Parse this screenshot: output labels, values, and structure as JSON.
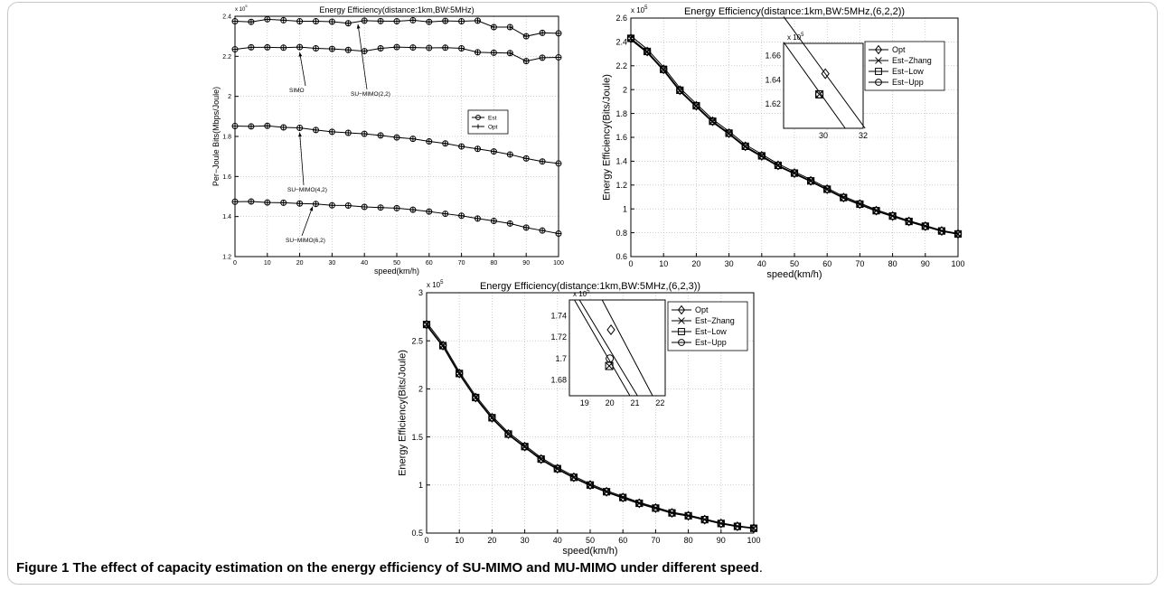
{
  "caption": {
    "label": "Figure 1",
    "text": "The effect of capacity estimation on the energy efficiency of SU-MIMO and MU-MIMO under different speed",
    "period": "."
  },
  "chart_data": [
    {
      "type": "line",
      "title": "Energy Efficiency(distance:1km,BW:5MHz)",
      "xlabel": "speed(km/h)",
      "ylabel": "Per−Joule Bits(Mbps/Joule)",
      "exponent_label": "x 10",
      "exponent_power": "5",
      "xlim": [
        0,
        100
      ],
      "ylim": [
        1.2,
        2.4
      ],
      "xticks": [
        0,
        10,
        20,
        30,
        40,
        50,
        60,
        70,
        80,
        90,
        100
      ],
      "yticks": [
        1.2,
        1.4,
        1.6,
        1.8,
        2,
        2.2,
        2.4
      ],
      "grid": true,
      "legend_position": "middle-right",
      "legend": [
        {
          "name": "Est",
          "marker": "circle"
        },
        {
          "name": "Opt",
          "marker": "plus"
        }
      ],
      "x": [
        0,
        5,
        10,
        15,
        20,
        25,
        30,
        35,
        40,
        45,
        50,
        55,
        60,
        65,
        70,
        75,
        80,
        85,
        90,
        95,
        100
      ],
      "series": [
        {
          "label": "SU−MIMO(2,2)",
          "values": [
            2.375,
            2.372,
            2.385,
            2.38,
            2.375,
            2.375,
            2.373,
            2.365,
            2.378,
            2.376,
            2.375,
            2.38,
            2.372,
            2.377,
            2.375,
            2.378,
            2.346,
            2.346,
            2.3,
            2.317,
            2.315
          ]
        },
        {
          "label": "SIMO",
          "values": [
            2.235,
            2.245,
            2.245,
            2.243,
            2.246,
            2.24,
            2.237,
            2.232,
            2.226,
            2.24,
            2.246,
            2.244,
            2.242,
            2.243,
            2.24,
            2.22,
            2.218,
            2.216,
            2.176,
            2.193,
            2.195
          ]
        },
        {
          "label": "SU−MIMO(4,2)",
          "values": [
            1.852,
            1.85,
            1.853,
            1.845,
            1.843,
            1.832,
            1.823,
            1.818,
            1.813,
            1.805,
            1.795,
            1.788,
            1.775,
            1.765,
            1.75,
            1.738,
            1.725,
            1.71,
            1.69,
            1.675,
            1.665
          ]
        },
        {
          "label": "SU−MIMO(6,2)",
          "values": [
            1.474,
            1.475,
            1.47,
            1.469,
            1.465,
            1.463,
            1.456,
            1.455,
            1.448,
            1.445,
            1.442,
            1.434,
            1.425,
            1.414,
            1.404,
            1.39,
            1.378,
            1.365,
            1.345,
            1.33,
            1.315
          ]
        }
      ],
      "annotations": [
        "SIMO",
        "SU−MIMO(2,2)",
        "SU−MIMO(4,2)",
        "SU−MIMO(6,2)"
      ]
    },
    {
      "type": "line",
      "title": "Energy Efficiency(distance:1km,BW:5MHz,(6,2,2))",
      "xlabel": "speed(km/h)",
      "ylabel": "Energy Efficiency(Bits/Joule)",
      "exponent_label": "x 10",
      "exponent_power": "5",
      "xlim": [
        0,
        100
      ],
      "ylim": [
        0.6,
        2.6
      ],
      "xticks": [
        0,
        10,
        20,
        30,
        40,
        50,
        60,
        70,
        80,
        90,
        100
      ],
      "yticks": [
        0.6,
        0.8,
        1,
        1.2,
        1.4,
        1.6,
        1.8,
        2,
        2.2,
        2.4,
        2.6
      ],
      "grid": true,
      "legend_position": "top-right",
      "legend": [
        {
          "name": "Opt",
          "marker": "diamond"
        },
        {
          "name": "Est−Zhang",
          "marker": "cross"
        },
        {
          "name": "Est−Low",
          "marker": "square"
        },
        {
          "name": "Est−Upp",
          "marker": "circle"
        }
      ],
      "x": [
        0,
        5,
        10,
        15,
        20,
        25,
        30,
        35,
        40,
        45,
        50,
        55,
        60,
        65,
        70,
        75,
        80,
        85,
        90,
        95,
        100
      ],
      "values": [
        2.43,
        2.32,
        2.17,
        1.995,
        1.865,
        1.735,
        1.635,
        1.525,
        1.445,
        1.365,
        1.3,
        1.235,
        1.165,
        1.095,
        1.04,
        0.985,
        0.94,
        0.895,
        0.855,
        0.815,
        0.79
      ],
      "inset": {
        "exponent_label": "x 10",
        "exponent_power": "5",
        "xlim": [
          28,
          32
        ],
        "ylim": [
          1.6,
          1.67
        ],
        "xticks": [
          30,
          32
        ],
        "yticks": [
          1.62,
          1.64,
          1.66
        ],
        "lines": [
          {
            "x": [
              28,
              31.1
            ],
            "y": [
              1.671,
              1.6
            ]
          },
          {
            "x": [
              28,
              32.1
            ],
            "y": [
              1.692,
              1.6
            ]
          }
        ],
        "markers": [
          {
            "x": 30.1,
            "y": 1.645,
            "marker": "diamond"
          },
          {
            "x": 29.8,
            "y": 1.628,
            "marker": "square"
          },
          {
            "x": 29.8,
            "y": 1.628,
            "marker": "circle"
          },
          {
            "x": 29.8,
            "y": 1.628,
            "marker": "cross"
          }
        ]
      }
    },
    {
      "type": "line",
      "title": "Energy Efficiency(distance:1km,BW:5MHz,(6,2,3))",
      "xlabel": "speed(km/h)",
      "ylabel": "Energy Efficiency(Bits/Joule)",
      "exponent_label": "x 10",
      "exponent_power": "5",
      "xlim": [
        0,
        100
      ],
      "ylim": [
        0.5,
        3
      ],
      "xticks": [
        0,
        10,
        20,
        30,
        40,
        50,
        60,
        70,
        80,
        90,
        100
      ],
      "yticks": [
        0.5,
        1,
        1.5,
        2,
        2.5,
        3
      ],
      "grid": true,
      "legend_position": "top-right",
      "legend": [
        {
          "name": "Opt",
          "marker": "diamond"
        },
        {
          "name": "Est−Zhang",
          "marker": "cross"
        },
        {
          "name": "Est−Low",
          "marker": "square"
        },
        {
          "name": "Est−Upp",
          "marker": "circle"
        }
      ],
      "x": [
        0,
        5,
        10,
        15,
        20,
        25,
        30,
        35,
        40,
        45,
        50,
        55,
        60,
        65,
        70,
        75,
        80,
        85,
        90,
        95,
        100
      ],
      "values": [
        2.67,
        2.45,
        2.16,
        1.91,
        1.7,
        1.53,
        1.4,
        1.27,
        1.17,
        1.08,
        1.0,
        0.93,
        0.87,
        0.81,
        0.76,
        0.71,
        0.68,
        0.64,
        0.6,
        0.57,
        0.55
      ],
      "inset": {
        "exponent_label": "x 10",
        "exponent_power": "5",
        "xlim": [
          18.4,
          22.2
        ],
        "ylim": [
          1.665,
          1.755
        ],
        "xticks": [
          19,
          20,
          21,
          22
        ],
        "yticks": [
          1.68,
          1.7,
          1.72,
          1.74
        ],
        "lines": [
          {
            "x": [
              18.6,
              20.8
            ],
            "y": [
              1.755,
              1.665
            ]
          },
          {
            "x": [
              18.8,
              21.1
            ],
            "y": [
              1.755,
              1.665
            ]
          },
          {
            "x": [
              19.7,
              21.7
            ],
            "y": [
              1.755,
              1.665
            ]
          }
        ],
        "markers": [
          {
            "x": 20.05,
            "y": 1.727,
            "marker": "diamond"
          },
          {
            "x": 20.0,
            "y": 1.7,
            "marker": "circle"
          },
          {
            "x": 19.98,
            "y": 1.693,
            "marker": "square"
          },
          {
            "x": 19.98,
            "y": 1.693,
            "marker": "cross"
          }
        ]
      }
    }
  ]
}
